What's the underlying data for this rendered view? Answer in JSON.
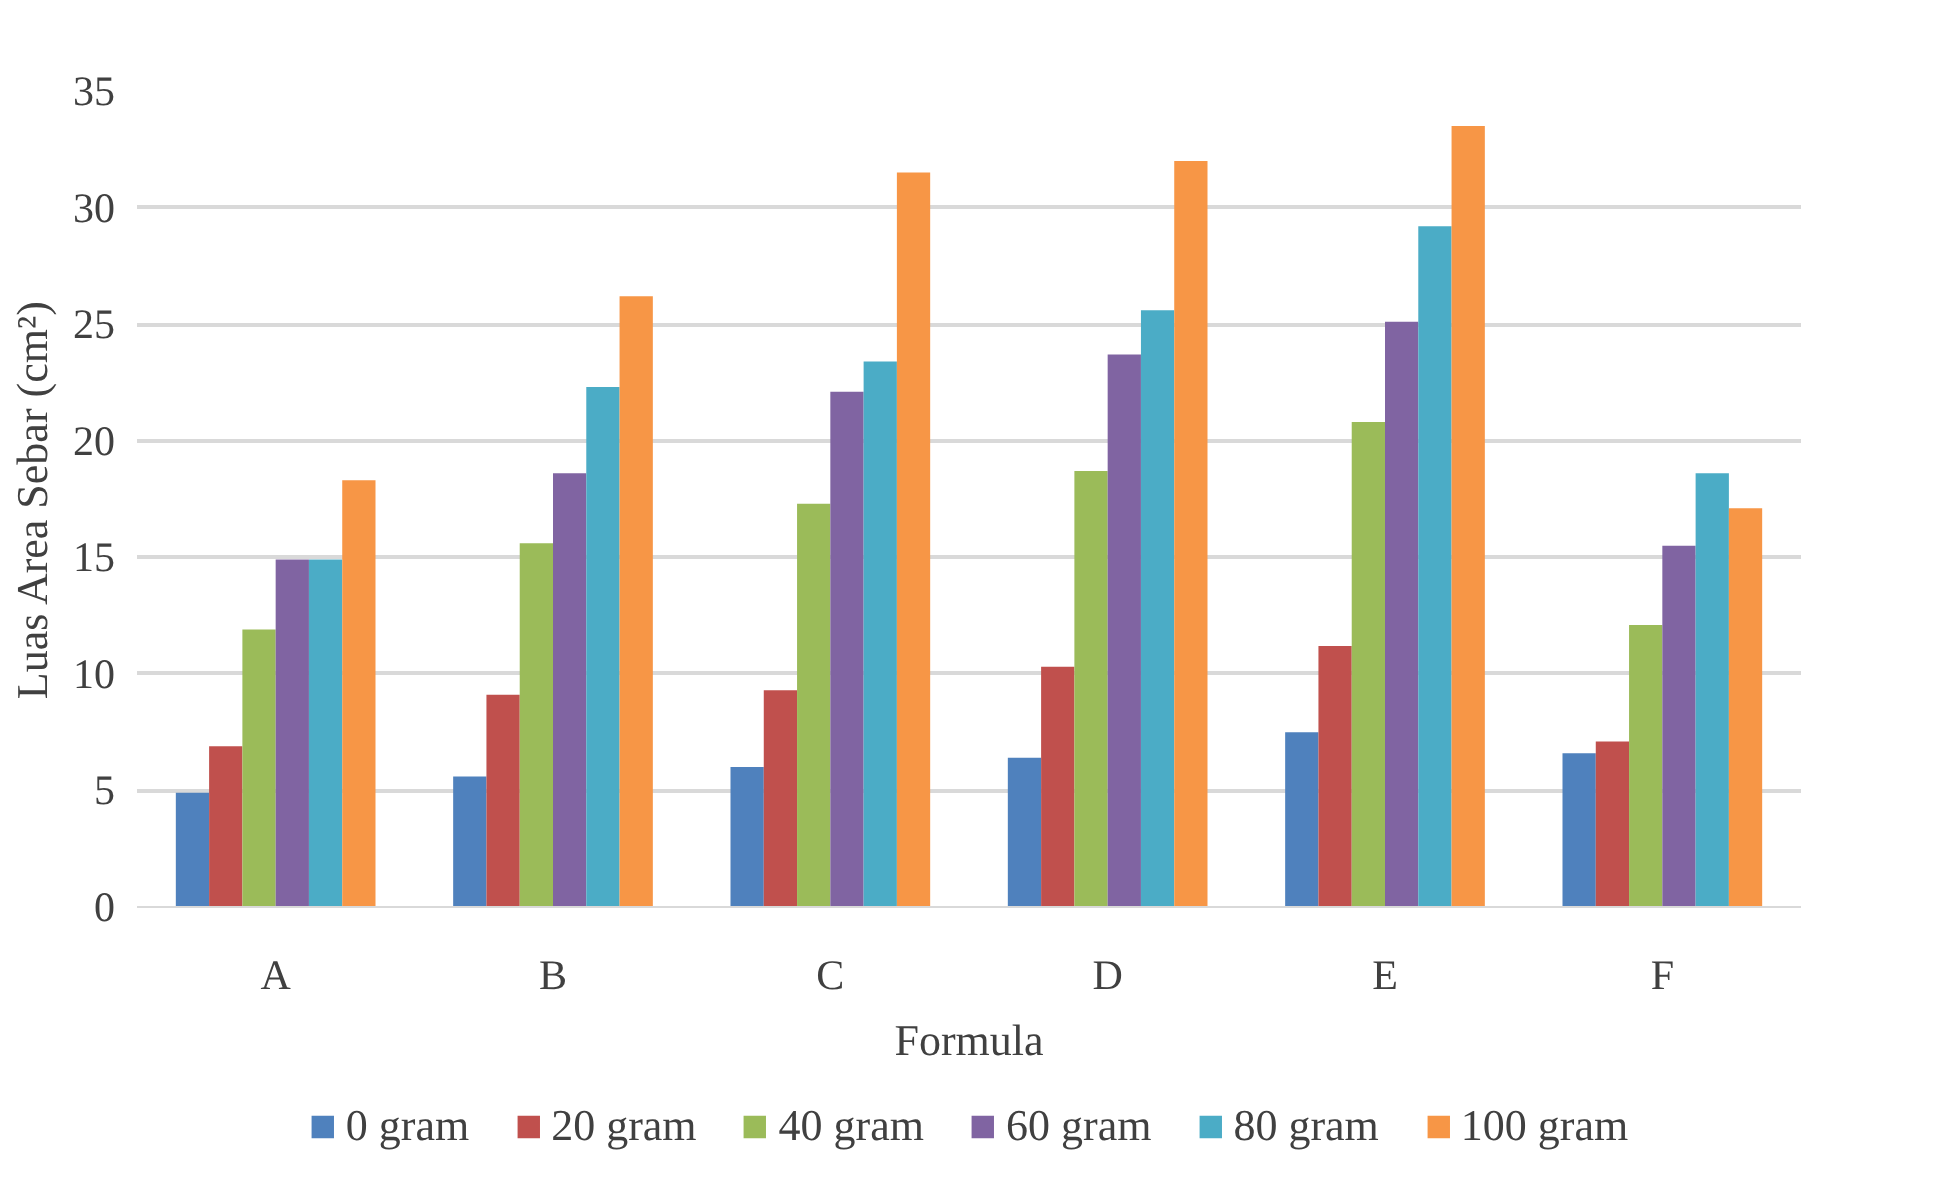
{
  "chart_data": {
    "type": "bar",
    "xlabel": "Formula",
    "ylabel": "Luas Area Sebar (cm²)",
    "categories": [
      "A",
      "B",
      "C",
      "D",
      "E",
      "F"
    ],
    "series": [
      {
        "name": "0 gram",
        "color": "#4f81bd",
        "values": [
          4.9,
          5.6,
          6.0,
          6.4,
          7.5,
          6.6
        ]
      },
      {
        "name": "20 gram",
        "color": "#c0504d",
        "values": [
          6.9,
          9.1,
          9.3,
          10.3,
          11.2,
          7.1
        ]
      },
      {
        "name": "40 gram",
        "color": "#9bbb59",
        "values": [
          11.9,
          15.6,
          17.3,
          18.7,
          20.8,
          12.1
        ]
      },
      {
        "name": "60 gram",
        "color": "#8064a2",
        "values": [
          14.9,
          18.6,
          22.1,
          23.7,
          25.1,
          15.5
        ]
      },
      {
        "name": "80 gram",
        "color": "#4bacc6",
        "values": [
          14.9,
          22.3,
          23.4,
          25.6,
          29.2,
          18.6
        ]
      },
      {
        "name": "100 gram",
        "color": "#f79646",
        "values": [
          18.3,
          26.2,
          31.5,
          32.0,
          33.5,
          17.1
        ]
      }
    ],
    "ylim": [
      0,
      35
    ],
    "yticks": [
      0,
      5,
      10,
      15,
      20,
      25,
      30,
      35
    ],
    "grid": "y",
    "legend": "bottom"
  }
}
